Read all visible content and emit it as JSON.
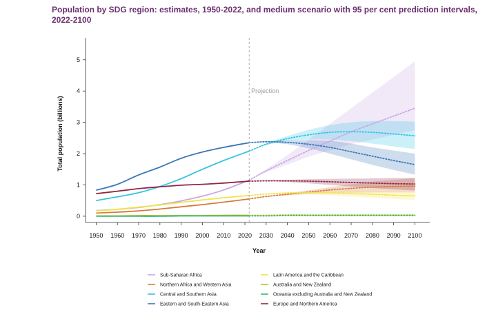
{
  "chart_data": {
    "type": "line",
    "title": "Population by SDG region: estimates, 1950-2022, and medium scenario with 95 per cent prediction intervals, 2022-2100",
    "xlabel": "Year",
    "ylabel": "Total population (billions)",
    "xlim": [
      1945,
      2107
    ],
    "ylim": [
      -0.2,
      5.7
    ],
    "xticks": [
      1950,
      1960,
      1970,
      1980,
      1990,
      2000,
      2010,
      2020,
      2030,
      2040,
      2050,
      2060,
      2070,
      2080,
      2090,
      2100
    ],
    "yticks": [
      0,
      1,
      2,
      3,
      4,
      5
    ],
    "annotation": {
      "text": "Projection",
      "x": 2022
    },
    "legend_position": "bottom",
    "series": [
      {
        "name": "Sub-Saharan Africa",
        "color": "#c9a6e3",
        "estimates": {
          "x": [
            1950,
            1960,
            1970,
            1980,
            1990,
            2000,
            2010,
            2022
          ],
          "y": [
            0.18,
            0.22,
            0.28,
            0.37,
            0.49,
            0.64,
            0.84,
            1.15
          ]
        },
        "projection": {
          "x": [
            2022,
            2030,
            2040,
            2050,
            2060,
            2070,
            2080,
            2090,
            2100
          ],
          "y": [
            1.15,
            1.45,
            1.78,
            2.1,
            2.4,
            2.7,
            2.95,
            3.2,
            3.45
          ]
        },
        "interval": {
          "lower": [
            1.15,
            1.4,
            1.65,
            1.9,
            2.1,
            2.3,
            2.45,
            2.6,
            2.75
          ],
          "upper": [
            1.15,
            1.5,
            1.95,
            2.45,
            2.95,
            3.45,
            3.95,
            4.45,
            4.95
          ]
        }
      },
      {
        "name": "Northern Africa and Western Asia",
        "color": "#d9793a",
        "estimates": {
          "x": [
            1950,
            1960,
            1970,
            1980,
            1990,
            2000,
            2010,
            2022
          ],
          "y": [
            0.1,
            0.13,
            0.17,
            0.23,
            0.3,
            0.37,
            0.45,
            0.55
          ]
        },
        "projection": {
          "x": [
            2022,
            2030,
            2040,
            2050,
            2060,
            2070,
            2080,
            2090,
            2100
          ],
          "y": [
            0.55,
            0.63,
            0.7,
            0.77,
            0.84,
            0.89,
            0.93,
            0.95,
            0.96
          ]
        },
        "interval": {
          "lower": [
            0.55,
            0.62,
            0.67,
            0.71,
            0.74,
            0.75,
            0.76,
            0.76,
            0.76
          ],
          "upper": [
            0.55,
            0.64,
            0.73,
            0.83,
            0.93,
            1.02,
            1.1,
            1.16,
            1.22
          ]
        }
      },
      {
        "name": "Central and Southern Asia",
        "color": "#34c3e2",
        "estimates": {
          "x": [
            1950,
            1960,
            1970,
            1980,
            1990,
            2000,
            2010,
            2022
          ],
          "y": [
            0.5,
            0.62,
            0.75,
            0.95,
            1.2,
            1.5,
            1.78,
            2.08
          ]
        },
        "projection": {
          "x": [
            2022,
            2030,
            2040,
            2050,
            2060,
            2070,
            2080,
            2090,
            2100
          ],
          "y": [
            2.08,
            2.3,
            2.48,
            2.6,
            2.68,
            2.7,
            2.68,
            2.63,
            2.57
          ]
        },
        "interval": {
          "lower": [
            2.08,
            2.27,
            2.4,
            2.45,
            2.45,
            2.4,
            2.32,
            2.23,
            2.15
          ],
          "upper": [
            2.08,
            2.33,
            2.56,
            2.76,
            2.91,
            3.0,
            3.04,
            3.04,
            3.02
          ]
        }
      },
      {
        "name": "Eastern and South-Eastern Asia",
        "color": "#3a78b8",
        "estimates": {
          "x": [
            1950,
            1960,
            1970,
            1980,
            1990,
            2000,
            2010,
            2022
          ],
          "y": [
            0.83,
            1.02,
            1.32,
            1.57,
            1.85,
            2.05,
            2.2,
            2.35
          ]
        },
        "projection": {
          "x": [
            2022,
            2030,
            2040,
            2050,
            2060,
            2070,
            2080,
            2090,
            2100
          ],
          "y": [
            2.35,
            2.38,
            2.36,
            2.3,
            2.2,
            2.06,
            1.92,
            1.78,
            1.65
          ]
        },
        "interval": {
          "lower": [
            2.35,
            2.36,
            2.3,
            2.17,
            2.0,
            1.82,
            1.64,
            1.48,
            1.33
          ],
          "upper": [
            2.35,
            2.4,
            2.42,
            2.43,
            2.41,
            2.32,
            2.2,
            2.1,
            2.0
          ]
        }
      },
      {
        "name": "Latin America and the Caribbean",
        "color": "#f2e24a",
        "estimates": {
          "x": [
            1950,
            1960,
            1970,
            1980,
            1990,
            2000,
            2010,
            2022
          ],
          "y": [
            0.17,
            0.22,
            0.29,
            0.36,
            0.44,
            0.52,
            0.59,
            0.66
          ]
        },
        "projection": {
          "x": [
            2022,
            2030,
            2040,
            2050,
            2060,
            2070,
            2080,
            2090,
            2100
          ],
          "y": [
            0.66,
            0.71,
            0.74,
            0.75,
            0.74,
            0.72,
            0.7,
            0.67,
            0.65
          ]
        },
        "interval": {
          "lower": [
            0.66,
            0.7,
            0.71,
            0.7,
            0.67,
            0.63,
            0.59,
            0.55,
            0.52
          ],
          "upper": [
            0.66,
            0.72,
            0.77,
            0.8,
            0.81,
            0.81,
            0.8,
            0.78,
            0.77
          ]
        }
      },
      {
        "name": "Australia and New Zealand",
        "color": "#b8c22a",
        "estimates": {
          "x": [
            1950,
            1960,
            1970,
            1980,
            1990,
            2000,
            2010,
            2022
          ],
          "y": [
            0.01,
            0.01,
            0.02,
            0.02,
            0.02,
            0.02,
            0.03,
            0.03
          ]
        },
        "projection": {
          "x": [
            2022,
            2030,
            2040,
            2050,
            2060,
            2070,
            2080,
            2090,
            2100
          ],
          "y": [
            0.03,
            0.03,
            0.04,
            0.04,
            0.04,
            0.04,
            0.04,
            0.04,
            0.04
          ]
        },
        "interval": {
          "lower": [
            0.03,
            0.03,
            0.03,
            0.03,
            0.03,
            0.03,
            0.03,
            0.03,
            0.03
          ],
          "upper": [
            0.03,
            0.03,
            0.04,
            0.04,
            0.05,
            0.05,
            0.05,
            0.05,
            0.05
          ]
        }
      },
      {
        "name": "Oceania excluding Australia and New Zealand",
        "color": "#3db86a",
        "estimates": {
          "x": [
            1950,
            1960,
            1970,
            1980,
            1990,
            2000,
            2010,
            2022
          ],
          "y": [
            0.0,
            0.0,
            0.0,
            0.0,
            0.01,
            0.01,
            0.01,
            0.01
          ]
        },
        "projection": {
          "x": [
            2022,
            2030,
            2040,
            2050,
            2060,
            2070,
            2080,
            2090,
            2100
          ],
          "y": [
            0.01,
            0.01,
            0.02,
            0.02,
            0.02,
            0.02,
            0.02,
            0.02,
            0.02
          ]
        },
        "interval": {
          "lower": [
            0.01,
            0.01,
            0.01,
            0.01,
            0.01,
            0.01,
            0.01,
            0.01,
            0.01
          ],
          "upper": [
            0.01,
            0.01,
            0.02,
            0.02,
            0.03,
            0.03,
            0.03,
            0.03,
            0.03
          ]
        }
      },
      {
        "name": "Europe and Northern America",
        "color": "#8e2745",
        "estimates": {
          "x": [
            1950,
            1960,
            1970,
            1980,
            1990,
            2000,
            2010,
            2022
          ],
          "y": [
            0.72,
            0.8,
            0.88,
            0.94,
            0.99,
            1.02,
            1.06,
            1.12
          ]
        },
        "projection": {
          "x": [
            2022,
            2030,
            2040,
            2050,
            2060,
            2070,
            2080,
            2090,
            2100
          ],
          "y": [
            1.12,
            1.13,
            1.13,
            1.12,
            1.1,
            1.08,
            1.06,
            1.04,
            1.03
          ]
        },
        "interval": {
          "lower": [
            1.12,
            1.12,
            1.09,
            1.05,
            1.0,
            0.95,
            0.9,
            0.86,
            0.82
          ],
          "upper": [
            1.12,
            1.14,
            1.16,
            1.18,
            1.19,
            1.2,
            1.21,
            1.22,
            1.22
          ]
        }
      }
    ]
  }
}
